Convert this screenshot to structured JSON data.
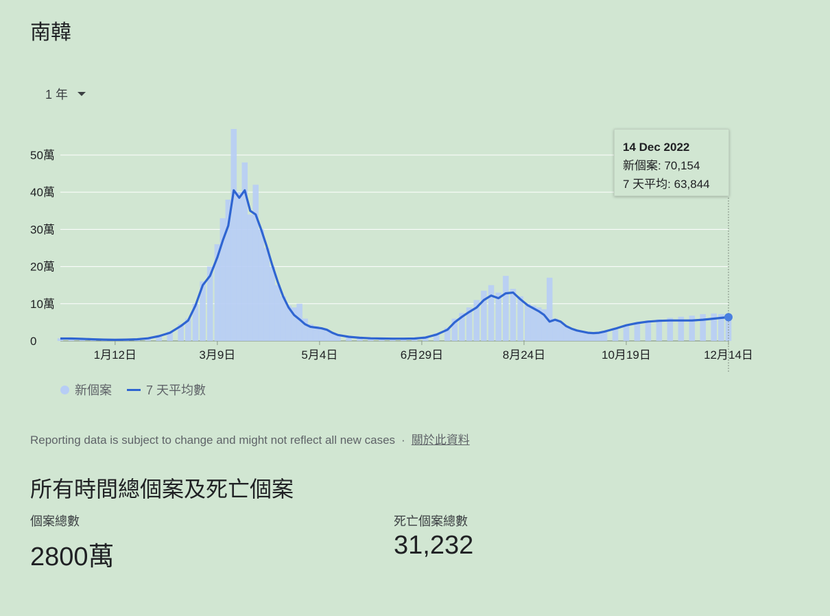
{
  "header": {
    "title": "南韓"
  },
  "range_selector": {
    "label": "1 年"
  },
  "chart_data": {
    "type": "bar",
    "y_tick_labels": [
      "0",
      "10萬",
      "20萬",
      "30萬",
      "40萬",
      "50萬"
    ],
    "y_tick_values": [
      0,
      100000,
      200000,
      300000,
      400000,
      500000
    ],
    "ylim": [
      0,
      570000
    ],
    "x_tick_labels": [
      "1月12日",
      "3月9日",
      "5月4日",
      "6月29日",
      "8月24日",
      "10月19日",
      "12月14日"
    ],
    "x_tick_days": [
      -336,
      -280,
      -224,
      -168,
      -112,
      -56,
      0
    ],
    "xlim": [
      -366,
      0
    ],
    "grid": true,
    "series": [
      {
        "name": "新個案",
        "kind": "bar",
        "color": "#b7cdf5",
        "values_note_excluded": true,
        "x": [
          -366,
          -360,
          -354,
          -348,
          -342,
          -336,
          -330,
          -324,
          -318,
          -312,
          -306,
          -300,
          -296,
          -292,
          -288,
          -284,
          -280,
          -277,
          -274,
          -271,
          -268,
          -265,
          -262,
          -259,
          -256,
          -253,
          -250,
          -247,
          -244,
          -241,
          -238,
          -235,
          -232,
          -229,
          -226,
          -223,
          -220,
          -217,
          -214,
          -208,
          -202,
          -196,
          -190,
          -184,
          -178,
          -172,
          -166,
          -160,
          -154,
          -150,
          -146,
          -142,
          -138,
          -134,
          -130,
          -126,
          -122,
          -118,
          -114,
          -110,
          -107,
          -104,
          -101,
          -98,
          -95,
          -92,
          -89,
          -86,
          -83,
          -80,
          -77,
          -74,
          -71,
          -68,
          -62,
          -56,
          -50,
          -44,
          -38,
          -32,
          -26,
          -20,
          -14,
          -8,
          -4,
          0
        ],
        "y": [
          7000,
          7000,
          6000,
          5000,
          4000,
          3500,
          4000,
          5000,
          8000,
          15000,
          25000,
          45000,
          60000,
          100000,
          160000,
          200000,
          260000,
          330000,
          380000,
          570000,
          400000,
          480000,
          340000,
          420000,
          300000,
          250000,
          200000,
          150000,
          120000,
          95000,
          90000,
          100000,
          60000,
          45000,
          40000,
          35000,
          30000,
          22000,
          15000,
          11000,
          9000,
          8000,
          7000,
          6000,
          6000,
          7000,
          10000,
          20000,
          35000,
          60000,
          75000,
          90000,
          110000,
          135000,
          150000,
          130000,
          175000,
          140000,
          120000,
          100000,
          95000,
          90000,
          85000,
          170000,
          60000,
          50000,
          40000,
          32000,
          28000,
          25000,
          23000,
          22000,
          23000,
          27000,
          35000,
          42000,
          50000,
          55000,
          58000,
          62000,
          65000,
          68000,
          72000,
          74000,
          72000,
          70154
        ]
      },
      {
        "name": "7 天平均數",
        "kind": "line",
        "color": "#2f65d1",
        "x": [
          -366,
          -360,
          -354,
          -348,
          -342,
          -336,
          -330,
          -324,
          -318,
          -312,
          -306,
          -300,
          -296,
          -292,
          -288,
          -284,
          -280,
          -277,
          -274,
          -271,
          -268,
          -265,
          -262,
          -259,
          -256,
          -253,
          -250,
          -247,
          -244,
          -241,
          -238,
          -235,
          -232,
          -229,
          -226,
          -223,
          -220,
          -217,
          -214,
          -208,
          -202,
          -196,
          -190,
          -184,
          -178,
          -172,
          -166,
          -160,
          -154,
          -150,
          -146,
          -142,
          -138,
          -134,
          -130,
          -126,
          -122,
          -118,
          -114,
          -110,
          -107,
          -104,
          -101,
          -98,
          -95,
          -92,
          -89,
          -86,
          -83,
          -80,
          -77,
          -74,
          -71,
          -68,
          -62,
          -56,
          -50,
          -44,
          -38,
          -32,
          -26,
          -20,
          -14,
          -8,
          -4,
          0
        ],
        "y": [
          6500,
          6500,
          5500,
          4500,
          3500,
          3000,
          3500,
          4500,
          7000,
          13000,
          22000,
          40000,
          55000,
          95000,
          150000,
          175000,
          225000,
          270000,
          310000,
          405000,
          385000,
          405000,
          350000,
          340000,
          300000,
          255000,
          205000,
          160000,
          120000,
          90000,
          70000,
          58000,
          45000,
          38000,
          36000,
          34000,
          30000,
          22000,
          16000,
          11000,
          8500,
          7000,
          6500,
          6000,
          6000,
          6500,
          9000,
          17000,
          30000,
          50000,
          65000,
          78000,
          90000,
          110000,
          122000,
          115000,
          128000,
          130000,
          112000,
          96000,
          88000,
          80000,
          70000,
          52000,
          57000,
          52000,
          40000,
          33000,
          28000,
          25000,
          22000,
          21000,
          22000,
          25000,
          33000,
          42000,
          48000,
          52000,
          54000,
          55000,
          55000,
          55000,
          57000,
          60000,
          62000,
          63844
        ]
      }
    ],
    "tooltip": {
      "date": "14 Dec 2022",
      "line1": "新個案: 70,154",
      "line2": "7 天平均: 63,844"
    }
  },
  "legend": {
    "cases": "新個案",
    "avg": "7 天平均數"
  },
  "note": {
    "text": "Reporting data is subject to change and might not reflect all new cases",
    "separator": "·",
    "link": "關於此資料"
  },
  "totals": {
    "title": "所有時間總個案及死亡個案",
    "cases_label": "個案總數",
    "cases_value": "2800萬",
    "deaths_label": "死亡個案總數",
    "deaths_value": "31,232"
  }
}
